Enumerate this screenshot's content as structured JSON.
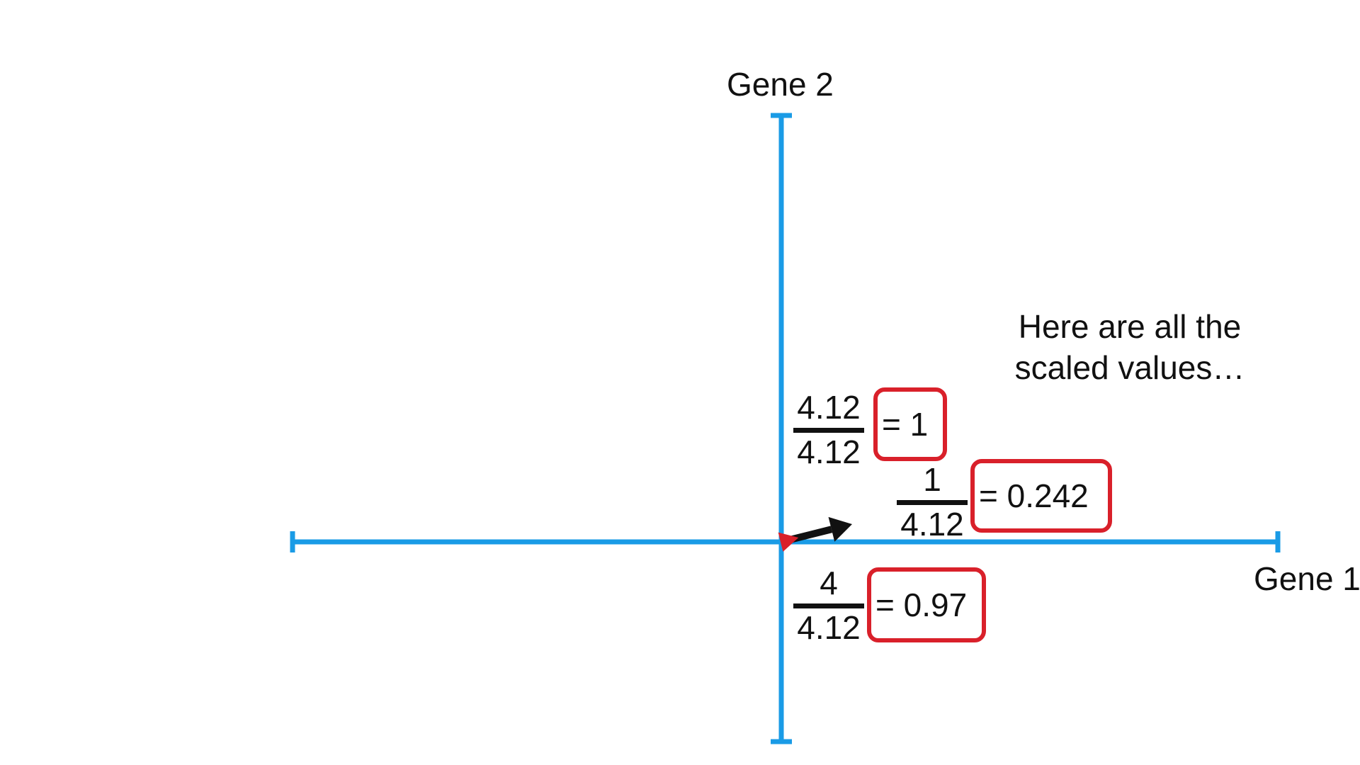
{
  "axes": {
    "x_label": "Gene 1",
    "y_label": "Gene 2",
    "color": "#1a9be6"
  },
  "caption": {
    "line1": "Here are all the",
    "line2": "scaled values…"
  },
  "fractions": [
    {
      "numerator": "4.12",
      "denominator": "4.12",
      "result": "= 1"
    },
    {
      "numerator": "1",
      "denominator": "4.12",
      "result": "= 0.242"
    },
    {
      "numerator": "4",
      "denominator": "4.12",
      "result": "= 0.97"
    }
  ],
  "vectors": {
    "original": {
      "gene1": 4,
      "gene2": 1,
      "color": "#111111"
    },
    "scaled": {
      "gene1": 0.97,
      "gene2": 0.242,
      "color": "#d9202a"
    }
  },
  "highlight_color": "#d9202a"
}
